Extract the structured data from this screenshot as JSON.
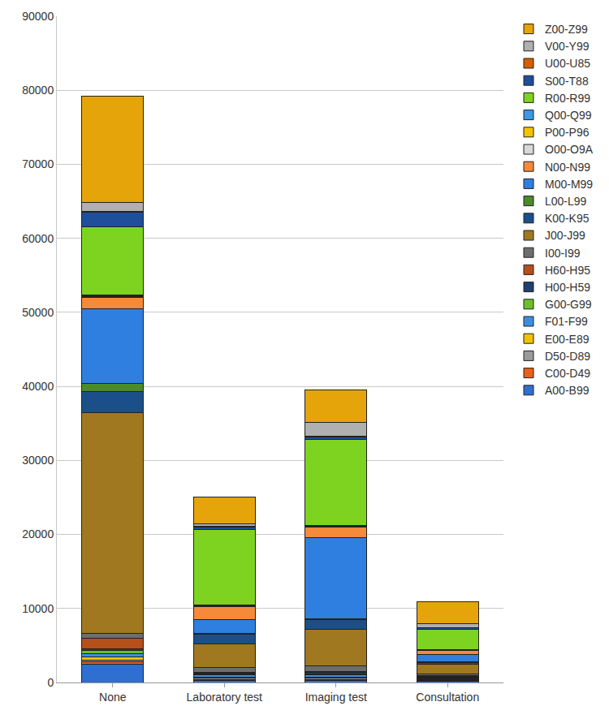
{
  "chart_data": {
    "type": "bar",
    "stacked": true,
    "grid": true,
    "legend": "right",
    "categories": [
      "None",
      "Laboratory test",
      "Imaging test",
      "Consultation"
    ],
    "ylim": [
      0,
      90000
    ],
    "yticks": [
      0,
      10000,
      20000,
      30000,
      40000,
      50000,
      60000,
      70000,
      80000,
      90000
    ],
    "series": [
      {
        "name": "A00-B99",
        "color": "#2f6fd0",
        "values": [
          2500,
          300,
          300,
          200
        ]
      },
      {
        "name": "C00-D49",
        "color": "#e8601c",
        "values": [
          300,
          100,
          100,
          100
        ]
      },
      {
        "name": "D50-D89",
        "color": "#9a9a9a",
        "values": [
          200,
          200,
          200,
          100
        ]
      },
      {
        "name": "E00-E89",
        "color": "#f2c200",
        "values": [
          400,
          150,
          150,
          100
        ]
      },
      {
        "name": "F01-F99",
        "color": "#3c8fe0",
        "values": [
          500,
          250,
          250,
          150
        ]
      },
      {
        "name": "G00-G99",
        "color": "#6bbf2a",
        "values": [
          400,
          150,
          200,
          100
        ]
      },
      {
        "name": "H00-H59",
        "color": "#20406e",
        "values": [
          300,
          150,
          200,
          100
        ]
      },
      {
        "name": "H60-H95",
        "color": "#b5501a",
        "values": [
          1400,
          100,
          100,
          50
        ]
      },
      {
        "name": "I00-I99",
        "color": "#6e6e6e",
        "values": [
          600,
          600,
          700,
          300
        ]
      },
      {
        "name": "J00-J99",
        "color": "#a07820",
        "values": [
          29900,
          3200,
          5000,
          1300
        ]
      },
      {
        "name": "K00-K95",
        "color": "#1b4f8a",
        "values": [
          2800,
          1300,
          1300,
          200
        ]
      },
      {
        "name": "L00-L99",
        "color": "#4b8b2a",
        "values": [
          1100,
          100,
          100,
          50
        ]
      },
      {
        "name": "M00-M99",
        "color": "#2f7fe0",
        "values": [
          10100,
          1900,
          11000,
          1050
        ]
      },
      {
        "name": "N00-N99",
        "color": "#f58a3a",
        "values": [
          1500,
          1800,
          1400,
          500
        ]
      },
      {
        "name": "O00-O9A",
        "color": "#d8d8d8",
        "values": [
          100,
          50,
          50,
          30
        ]
      },
      {
        "name": "P00-P96",
        "color": "#f5c400",
        "values": [
          100,
          50,
          50,
          30
        ]
      },
      {
        "name": "Q00-Q99",
        "color": "#3a9ae6",
        "values": [
          100,
          100,
          100,
          40
        ]
      },
      {
        "name": "R00-R99",
        "color": "#7ed321",
        "values": [
          9300,
          10200,
          11600,
          2800
        ]
      },
      {
        "name": "S00-T88",
        "color": "#1f4e9a",
        "values": [
          1900,
          300,
          400,
          200
        ]
      },
      {
        "name": "U00-U85",
        "color": "#d55e00",
        "values": [
          100,
          50,
          50,
          30
        ]
      },
      {
        "name": "V00-Y99",
        "color": "#b0b0b0",
        "values": [
          1200,
          350,
          1850,
          470
        ]
      },
      {
        "name": "Z00-Z99",
        "color": "#e5a50a",
        "values": [
          14400,
          3600,
          4400,
          3000
        ]
      }
    ]
  }
}
